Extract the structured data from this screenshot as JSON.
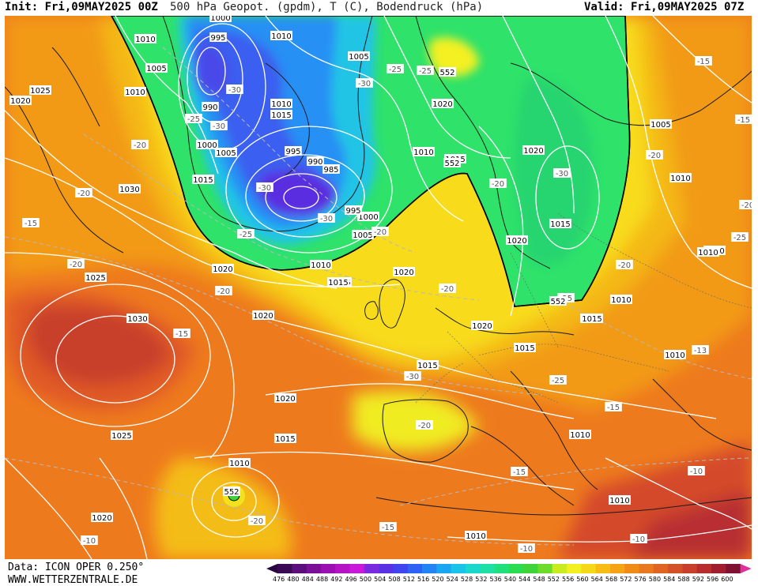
{
  "header": {
    "init": "Init: Fri,09MAY2025 00Z",
    "title": "500 hPa Geopot. (gpdm), T (C), Bodendruck (hPa)",
    "valid": "Valid: Fri,09MAY2025 07Z"
  },
  "footer": {
    "data_source": "Data: ICON OPER 0.250°",
    "website": "WWW.WETTERZENTRALE.DE"
  },
  "colorbar": {
    "labels": [
      "476",
      "480",
      "484",
      "488",
      "492",
      "496",
      "500",
      "504",
      "508",
      "512",
      "516",
      "520",
      "524",
      "528",
      "532",
      "536",
      "540",
      "544",
      "548",
      "552",
      "556",
      "560",
      "564",
      "568",
      "572",
      "576",
      "580",
      "584",
      "588",
      "592",
      "596",
      "600"
    ],
    "colors": [
      "#3b0a57",
      "#5a0f7a",
      "#7a1096",
      "#9a10b0",
      "#b414c4",
      "#c81ad8",
      "#7a2be0",
      "#5a32e6",
      "#3f46f0",
      "#2e62f4",
      "#2384f4",
      "#1aa6f0",
      "#18c4e8",
      "#1ad8cc",
      "#1ee0a4",
      "#20e07c",
      "#2adc52",
      "#3ed43a",
      "#6edc2a",
      "#c8ec1e",
      "#f4f020",
      "#f6d818",
      "#f6be14",
      "#f4a414",
      "#f08c18",
      "#ea781e",
      "#e06424",
      "#d4522a",
      "#c8402c",
      "#b82e2e",
      "#a01e30",
      "#801232"
    ]
  },
  "map_labels": {
    "pressure": [
      "1000",
      "1010",
      "995",
      "1005",
      "990",
      "1010",
      "1025",
      "1010",
      "1000",
      "1005",
      "1020",
      "1030",
      "1015",
      "995",
      "990",
      "985",
      "1005",
      "1000",
      "995",
      "1010",
      "1015",
      "1005",
      "1020",
      "1010",
      "1015",
      "1020",
      "1030",
      "1020",
      "1015",
      "1020",
      "1015",
      "1010",
      "1020",
      "1025",
      "1020",
      "1010",
      "1010",
      "1020",
      "1015",
      "1015",
      "1005",
      "1010",
      "1010",
      "1015",
      "1010",
      "1015",
      "1015",
      "1010",
      "1010",
      "1010",
      "1020",
      "1025",
      "1020",
      "1010",
      "1015"
    ],
    "temperature": [
      "-30",
      "-30",
      "-25",
      "-30",
      "-20",
      "-20",
      "-30",
      "-25",
      "-30",
      "-25",
      "-20",
      "-25",
      "-15",
      "-20",
      "-15",
      "-20",
      "-25",
      "-20",
      "-30",
      "-25",
      "-30",
      "-15",
      "-20",
      "-15",
      "-20",
      "-10",
      "-20",
      "-15",
      "-20",
      "-25",
      "-20",
      "-13",
      "-15",
      "-10",
      "-10",
      "-15",
      "-20",
      "-10"
    ],
    "geopotential": [
      "552",
      "552",
      "552",
      "552"
    ]
  }
}
